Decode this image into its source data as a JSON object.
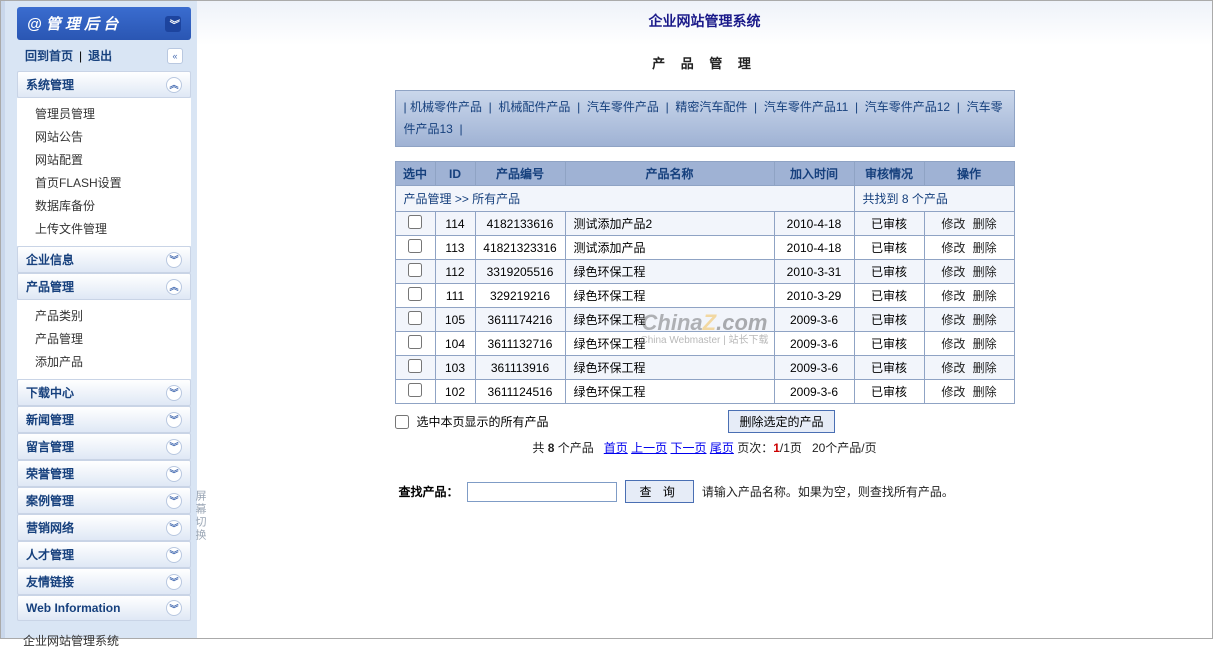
{
  "colors": {
    "accent": "#16407d",
    "header_grad_top": "#3a6ccf",
    "header_grad_bottom": "#2a56b3",
    "panel_grad_top": "#ffffff",
    "panel_grad_bottom": "#dfe8f5",
    "catbar_grad_top": "#cad7eb",
    "catbar_grad_bottom": "#9fb2d4",
    "border": "#8fa3c4",
    "row_alt": "#f2f5fb"
  },
  "sidebar": {
    "admin_title": "@ 管 理 后 台",
    "back_home": "回到首页",
    "logout": "退出",
    "sections": [
      {
        "title": "系统管理",
        "expanded": true,
        "chev": "︽",
        "items": [
          "管理员管理",
          "网站公告",
          "网站配置",
          "首页FLASH设置",
          "数据库备份",
          "上传文件管理"
        ]
      },
      {
        "title": "企业信息",
        "expanded": false,
        "chev": "︾",
        "items": []
      },
      {
        "title": "产品管理",
        "expanded": true,
        "chev": "︽",
        "items": [
          "产品类别",
          "产品管理",
          "添加产品"
        ]
      },
      {
        "title": "下载中心",
        "expanded": false,
        "chev": "︾",
        "items": []
      },
      {
        "title": "新闻管理",
        "expanded": false,
        "chev": "︾",
        "items": []
      },
      {
        "title": "留言管理",
        "expanded": false,
        "chev": "︾",
        "items": []
      },
      {
        "title": "荣誉管理",
        "expanded": false,
        "chev": "︾",
        "items": []
      },
      {
        "title": "案例管理",
        "expanded": false,
        "chev": "︾",
        "items": []
      },
      {
        "title": "营销网络",
        "expanded": false,
        "chev": "︾",
        "items": []
      },
      {
        "title": "人才管理",
        "expanded": false,
        "chev": "︾",
        "items": []
      },
      {
        "title": "友情链接",
        "expanded": false,
        "chev": "︾",
        "items": []
      },
      {
        "title": "Web Information",
        "expanded": false,
        "chev": "︾",
        "items": []
      }
    ],
    "footer": "企业网站管理系统",
    "screen_toggle": "屏幕切换"
  },
  "main": {
    "system_title": "企业网站管理系统",
    "page_title": "产 品 管 理",
    "categories": [
      "机械零件产品",
      "机械配件产品",
      "汽车零件产品",
      "精密汽车配件",
      "汽车零件产品11",
      "汽车零件产品12",
      "汽车零件产品13"
    ],
    "breadcrumb_left": "产品管理 >> 所有产品",
    "breadcrumb_right": "共找到 8 个产品",
    "columns": [
      "选中",
      "ID",
      "产品编号",
      "产品名称",
      "加入时间",
      "审核情况",
      "操作"
    ],
    "rows": [
      {
        "id": "114",
        "code": "4182133616",
        "name": "测试添加产品2",
        "date": "2010-4-18",
        "status": "已审核"
      },
      {
        "id": "113",
        "code": "41821323316",
        "name": "测试添加产品",
        "date": "2010-4-18",
        "status": "已审核"
      },
      {
        "id": "112",
        "code": "3319205516",
        "name": "绿色环保工程",
        "date": "2010-3-31",
        "status": "已审核"
      },
      {
        "id": "111",
        "code": "329219216",
        "name": "绿色环保工程",
        "date": "2010-3-29",
        "status": "已审核"
      },
      {
        "id": "105",
        "code": "3611174216",
        "name": "绿色环保工程",
        "date": "2009-3-6",
        "status": "已审核"
      },
      {
        "id": "104",
        "code": "3611132716",
        "name": "绿色环保工程",
        "date": "2009-3-6",
        "status": "已审核"
      },
      {
        "id": "103",
        "code": "361113916",
        "name": "绿色环保工程",
        "date": "2009-3-6",
        "status": "已审核"
      },
      {
        "id": "102",
        "code": "3611124516",
        "name": "绿色环保工程",
        "date": "2009-3-6",
        "status": "已审核"
      }
    ],
    "action_edit": "修改",
    "action_del": "删除",
    "select_all_label": "选中本页显示的所有产品",
    "delete_selected_btn": "删除选定的产品",
    "pager": {
      "total_prefix": "共",
      "total_count": "8",
      "total_suffix": "个产品",
      "first": "首页",
      "prev": "上一页",
      "next": "下一页",
      "last": "尾页",
      "page_label": "页次：",
      "page_current": "1",
      "page_total": "/1页",
      "per_page": "20个产品/页"
    },
    "search": {
      "label": "查找产品：",
      "button": "查 询",
      "hint": "请输入产品名称。如果为空，则查找所有产品。"
    },
    "watermark": {
      "line1a": "China",
      "line1b": "Z",
      "line1c": ".com",
      "line2": "China Webmaster | 站长下载"
    }
  }
}
